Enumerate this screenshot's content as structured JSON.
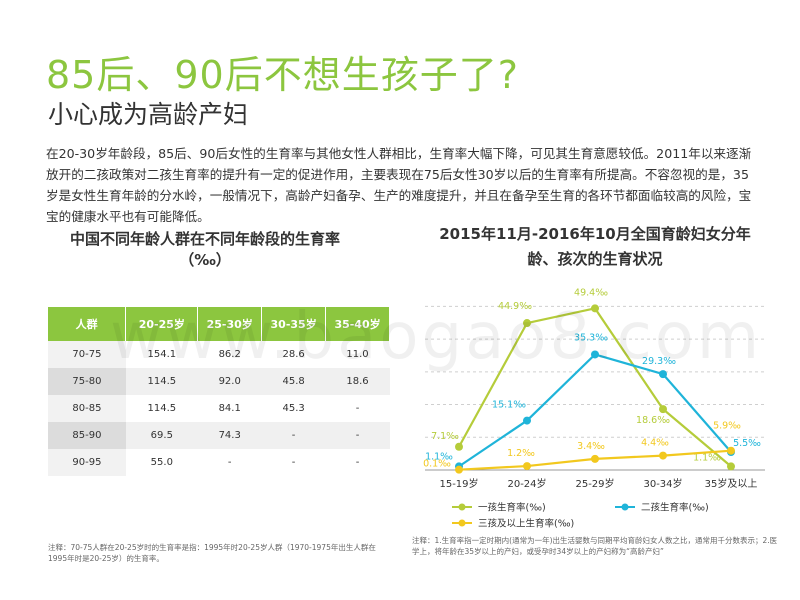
{
  "title": "85后、90后不想生孩子了?",
  "subtitle": "小心成为高龄产妇",
  "intro": "在20-30岁年龄段，85后、90后女性的生育率与其他女性人群相比，生育率大幅下降，可见其生育意愿较低。2011年以来逐渐放开的二孩政策对二孩生育率的提升有一定的促进作用，主要表现在75后女性30岁以后的生育率有所提高。不容忽视的是，35岁是女性生育年龄的分水岭，一般情况下，高龄产妇备孕、生产的难度提升，并且在备孕至生育的各环节都面临较高的风险，宝宝的健康水平也有可能降低。",
  "table": {
    "title": "中国不同年龄人群在不同年龄段的生育率（‰）",
    "headers": [
      "人群",
      "20-25岁",
      "25-30岁",
      "30-35岁",
      "35-40岁"
    ],
    "rows": [
      [
        "70-75",
        "154.1",
        "86.2",
        "28.6",
        "11.0"
      ],
      [
        "75-80",
        "114.5",
        "92.0",
        "45.8",
        "18.6"
      ],
      [
        "80-85",
        "114.5",
        "84.1",
        "45.3",
        "-"
      ],
      [
        "85-90",
        "69.5",
        "74.3",
        "-",
        "-"
      ],
      [
        "90-95",
        "55.0",
        "-",
        "-",
        "-"
      ]
    ],
    "note": "注释：70-75人群在20-25岁时的生育率是指：1995年时20-25岁人群（1970-1975年出生人群在1995年时是20-25岁）的生育率。"
  },
  "watermark": "www.baogao8.com",
  "chart_data": {
    "type": "line",
    "title": "2015年11月-2016年10月全国育龄妇女分年龄、孩次的生育状况",
    "categories": [
      "15-19岁",
      "20-24岁",
      "25-29岁",
      "30-34岁",
      "35岁及以上"
    ],
    "series": [
      {
        "name": "一孩生育率(‰)",
        "color": "#b5cc3a",
        "values": [
          7.1,
          44.9,
          49.4,
          18.6,
          1.1
        ],
        "labels": [
          "7.1‰",
          "44.9‰",
          "49.4‰",
          "18.6‰",
          "1.1‰"
        ]
      },
      {
        "name": "二孩生育率(‰)",
        "color": "#1fb4d9",
        "values": [
          1.1,
          15.1,
          35.3,
          29.3,
          5.5
        ],
        "labels": [
          "1.1‰",
          "15.1‰",
          "35.3‰",
          "29.3‰",
          "5.5‰"
        ]
      },
      {
        "name": "三孩及以上生育率(‰)",
        "color": "#f2c81e",
        "values": [
          0.1,
          1.2,
          3.4,
          4.4,
          5.9
        ],
        "labels": [
          "0.1‰",
          "1.2‰",
          "3.4‰",
          "4.4‰",
          "5.9‰"
        ]
      }
    ],
    "ylim": [
      0,
      55
    ],
    "grid": true,
    "legend": "bottom",
    "note": "注释：1.生育率指一定时期内(通常为一年)出生活婴数与同期平均育龄妇女人数之比，通常用千分数表示；2.医学上，将年龄在35岁以上的产妇，或受孕时34岁以上的产妇称为“高龄产妇”"
  }
}
